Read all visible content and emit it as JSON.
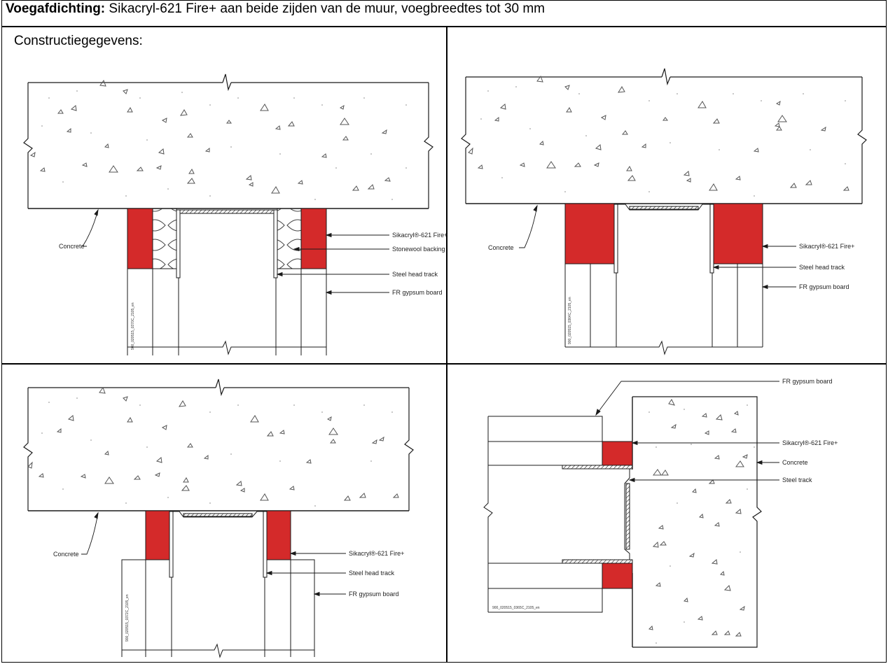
{
  "header": {
    "title_bold": "Voegafdichting:",
    "title_rest": " Sikacryl-621 Fire+ aan beide zijden van de muur, voegbreedtes tot 30 mm"
  },
  "subheader": "Constructiegegevens:",
  "colors": {
    "sealant": "#d42a2a",
    "line": "#1a1a1a",
    "text": "#222222"
  },
  "panels": {
    "p1": {
      "label_sealant": "Sikacryl®-621 Fire+",
      "label_backing": "Stonewool backing",
      "label_track": "Steel head track",
      "label_board": "FR gypsum board",
      "label_concrete": "Concrete",
      "code": "900_020515_0370C_2105_en"
    },
    "p2": {
      "label_sealant": "Sikacryl®-621 Fire+",
      "label_track": "Steel head track",
      "label_board": "FR gypsum board",
      "label_concrete": "Concrete",
      "code": "900_020515_0364C_2105_en"
    },
    "p3": {
      "label_sealant": "Sikacryl®-621 Fire+",
      "label_track": "Steel head track",
      "label_board": "FR gypsum board",
      "label_concrete": "Concrete",
      "code": "900_020515_0372C_2105_en"
    },
    "p4": {
      "label_board": "FR gypsum board",
      "label_sealant": "Sikacryl®-621 Fire+",
      "label_concrete": "Concrete",
      "label_track": "Steel track",
      "code": "900_020515_0365C_2105_en"
    }
  }
}
